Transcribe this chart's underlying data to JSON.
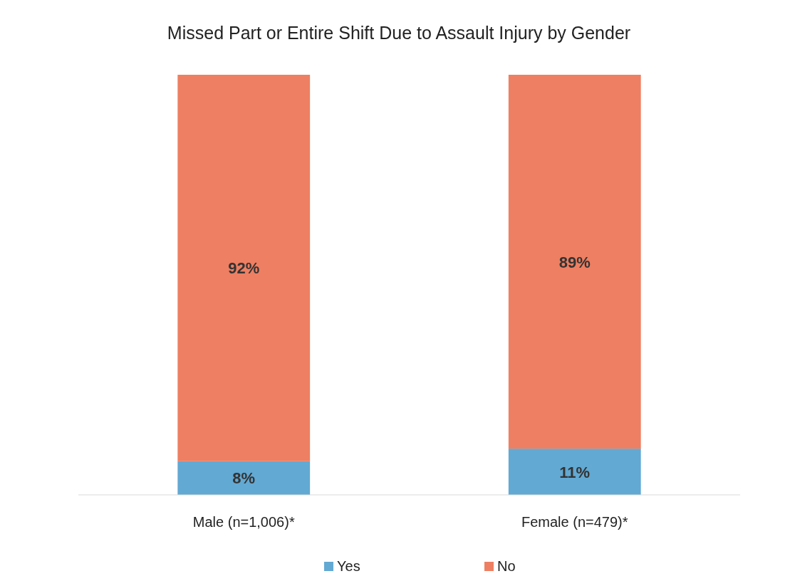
{
  "chart_data": {
    "type": "bar",
    "title": "Missed Part or Entire Shift Due to Assault Injury by Gender",
    "categories": [
      "Male (n=1,006)*",
      "Female (n=479)*"
    ],
    "stacked": true,
    "legend": "bottom",
    "series": [
      {
        "name": "Yes",
        "color": "#62a9d3",
        "values": [
          8,
          11
        ],
        "value_labels": [
          "8%",
          "11%"
        ]
      },
      {
        "name": "No",
        "color": "#ee7f62",
        "values": [
          92,
          89
        ],
        "value_labels": [
          "92%",
          "89%"
        ]
      }
    ]
  }
}
